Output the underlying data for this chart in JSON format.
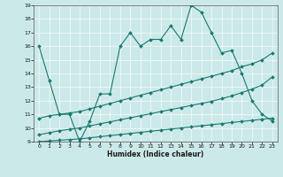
{
  "xlabel": "Humidex (Indice chaleur)",
  "bg_color": "#cce9e9",
  "grid_color": "#aad4d4",
  "line_color": "#1a7a6e",
  "xlim": [
    -0.5,
    23.5
  ],
  "ylim": [
    9,
    19
  ],
  "yticks": [
    9,
    10,
    11,
    12,
    13,
    14,
    15,
    16,
    17,
    18,
    19
  ],
  "xticks": [
    0,
    1,
    2,
    3,
    4,
    5,
    6,
    7,
    8,
    9,
    10,
    11,
    12,
    13,
    14,
    15,
    16,
    17,
    18,
    19,
    20,
    21,
    22,
    23
  ],
  "line1_x": [
    0,
    1,
    2,
    3,
    4,
    5,
    6,
    7,
    8,
    9,
    10,
    11,
    12,
    13,
    14,
    15,
    16,
    17,
    18,
    19,
    20,
    21,
    22,
    23
  ],
  "line1_y": [
    16.0,
    13.5,
    11.0,
    11.0,
    9.0,
    10.5,
    12.5,
    12.5,
    16.0,
    17.0,
    16.0,
    16.5,
    16.5,
    17.5,
    16.5,
    19.0,
    18.5,
    17.0,
    15.5,
    15.7,
    14.0,
    12.0,
    11.0,
    10.5
  ],
  "line2_x": [
    0,
    1,
    2,
    3,
    4,
    5,
    6,
    7,
    8,
    9,
    10,
    11,
    12,
    13,
    14,
    15,
    16,
    17,
    18,
    19,
    20,
    21,
    22,
    23
  ],
  "line2_y": [
    10.7,
    10.9,
    11.0,
    11.1,
    11.2,
    11.4,
    11.6,
    11.8,
    12.0,
    12.2,
    12.4,
    12.6,
    12.8,
    13.0,
    13.2,
    13.4,
    13.6,
    13.8,
    14.0,
    14.2,
    14.5,
    14.7,
    15.0,
    15.5
  ],
  "line3_x": [
    0,
    1,
    2,
    3,
    4,
    5,
    6,
    7,
    8,
    9,
    10,
    11,
    12,
    13,
    14,
    15,
    16,
    17,
    18,
    19,
    20,
    21,
    22,
    23
  ],
  "line3_y": [
    9.5,
    9.65,
    9.8,
    9.9,
    10.0,
    10.15,
    10.3,
    10.45,
    10.6,
    10.75,
    10.9,
    11.05,
    11.2,
    11.35,
    11.5,
    11.65,
    11.8,
    11.95,
    12.15,
    12.35,
    12.6,
    12.85,
    13.15,
    13.75
  ],
  "line4_x": [
    0,
    1,
    2,
    3,
    4,
    5,
    6,
    7,
    8,
    9,
    10,
    11,
    12,
    13,
    14,
    15,
    16,
    17,
    18,
    19,
    20,
    21,
    22,
    23
  ],
  "line4_y": [
    9.0,
    9.05,
    9.1,
    9.15,
    9.2,
    9.28,
    9.36,
    9.44,
    9.52,
    9.6,
    9.68,
    9.76,
    9.84,
    9.92,
    10.0,
    10.08,
    10.16,
    10.24,
    10.32,
    10.4,
    10.48,
    10.56,
    10.64,
    10.72
  ]
}
